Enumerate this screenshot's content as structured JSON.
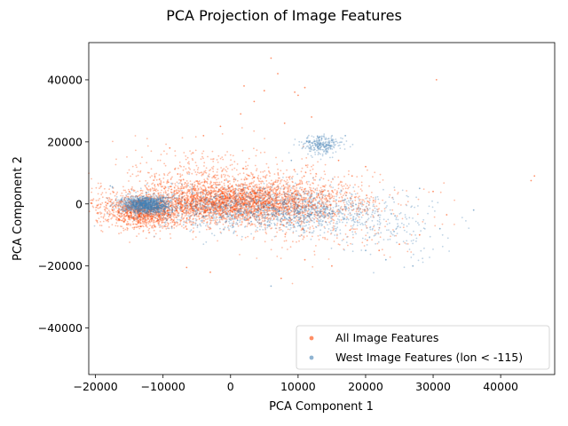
{
  "chart_data": {
    "type": "scatter",
    "title": "PCA Projection of Image Features",
    "xlabel": "PCA Component 1",
    "ylabel": "PCA Component 2",
    "xlim": [
      -21000,
      48000
    ],
    "ylim": [
      -55000,
      52000
    ],
    "x_ticks": [
      -20000,
      -10000,
      0,
      10000,
      20000,
      30000,
      40000
    ],
    "y_ticks": [
      -40000,
      -20000,
      0,
      20000,
      40000
    ],
    "x_tick_labels": [
      "−20000",
      "−10000",
      "0",
      "10000",
      "20000",
      "30000",
      "40000"
    ],
    "y_tick_labels": [
      "−40000",
      "−20000",
      "0",
      "20000",
      "40000"
    ],
    "grid": false,
    "legend_position": "bottom-right",
    "series": [
      {
        "name": "All Image Features",
        "color": "#ff4500",
        "clusters": [
          {
            "center": [
              -1000,
              200
            ],
            "spread": [
              9000,
              3000
            ],
            "weight": 0.55
          },
          {
            "center": [
              -13000,
              -3500
            ],
            "spread": [
              2500,
              2200
            ],
            "weight": 0.15
          },
          {
            "center": [
              5000,
              2000
            ],
            "spread": [
              8000,
              5000
            ],
            "weight": 0.2
          },
          {
            "center": [
              -5000,
              8000
            ],
            "spread": [
              5000,
              6000
            ],
            "weight": 0.07
          },
          {
            "center": [
              14000,
              -8000
            ],
            "spread": [
              7000,
              5000
            ],
            "weight": 0.03
          }
        ],
        "sample_points": [
          [
            -18500,
            500
          ],
          [
            -17800,
            800
          ],
          [
            -17000,
            1200
          ],
          [
            9500,
            36000
          ],
          [
            11000,
            37500
          ],
          [
            2000,
            38000
          ],
          [
            6000,
            47000
          ],
          [
            45000,
            9000
          ],
          [
            44500,
            7500
          ],
          [
            30500,
            40000
          ],
          [
            -4000,
            22000
          ],
          [
            1500,
            29000
          ],
          [
            8000,
            26000
          ],
          [
            -1500,
            25000
          ],
          [
            12000,
            28000
          ],
          [
            -9000,
            18000
          ],
          [
            3500,
            33000
          ],
          [
            7000,
            42000
          ],
          [
            5000,
            36500
          ],
          [
            10000,
            35000
          ],
          [
            -6500,
            -20500
          ],
          [
            -3000,
            -22000
          ],
          [
            7500,
            -24000
          ],
          [
            15000,
            -20000
          ],
          [
            11000,
            -18000
          ],
          [
            22000,
            -15000
          ],
          [
            25000,
            -13000
          ],
          [
            28000,
            -10000
          ],
          [
            32000,
            -3500
          ],
          [
            30000,
            4000
          ],
          [
            20000,
            12000
          ],
          [
            16000,
            14000
          ],
          [
            18000,
            9000
          ],
          [
            -15000,
            4000
          ],
          [
            -16500,
            -2500
          ]
        ]
      },
      {
        "name": "West Image Features (lon < -115)",
        "color": "#4682b4",
        "clusters": [
          {
            "center": [
              -12500,
              -300
            ],
            "spread": [
              1800,
              1400
            ],
            "weight": 0.4
          },
          {
            "center": [
              3000,
              -1500
            ],
            "spread": [
              7500,
              3500
            ],
            "weight": 0.35
          },
          {
            "center": [
              13500,
              19000
            ],
            "spread": [
              1500,
              1600
            ],
            "weight": 0.08
          },
          {
            "center": [
              13000,
              -3000
            ],
            "spread": [
              4500,
              3000
            ],
            "weight": 0.12
          },
          {
            "center": [
              24000,
              -8000
            ],
            "spread": [
              5000,
              5000
            ],
            "weight": 0.05
          }
        ],
        "sample_points": [
          [
            -17800,
            5800
          ],
          [
            -17500,
            5500
          ],
          [
            13500,
            21000
          ],
          [
            12500,
            19500
          ],
          [
            14500,
            18000
          ],
          [
            15000,
            20500
          ],
          [
            6000,
            -26500
          ],
          [
            23000,
            -18000
          ],
          [
            27000,
            -20000
          ],
          [
            31000,
            -8000
          ],
          [
            36000,
            -2000
          ],
          [
            28000,
            5000
          ],
          [
            20000,
            -15000
          ],
          [
            9000,
            14000
          ],
          [
            17000,
            22000
          ]
        ]
      }
    ]
  }
}
